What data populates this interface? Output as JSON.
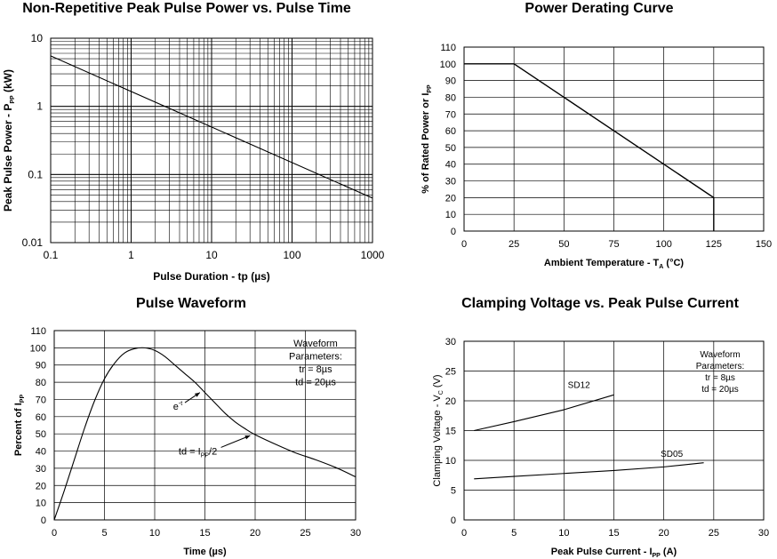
{
  "chart_data": [
    {
      "id": "power",
      "type": "line",
      "title": "Non-Repetitive Peak Pulse Power vs. Pulse Time",
      "xlabel": "Pulse Duration - tp (µs)",
      "ylabel": "Peak Pulse Power - P",
      "ylabel_sub": "PP",
      "ylabel_tail": " (kW)",
      "xscale": "log",
      "yscale": "log",
      "xlim": [
        0.1,
        1000
      ],
      "ylim": [
        0.01,
        10
      ],
      "xticks": [
        0.1,
        1,
        10,
        100,
        1000
      ],
      "xtick_labels": [
        "0.1",
        "1",
        "10",
        "100",
        "1000"
      ],
      "yticks": [
        10,
        1,
        0.1,
        0.01
      ],
      "ytick_labels": [
        "10",
        "1",
        "0.1",
        "0.01"
      ],
      "grid": true,
      "series": [
        {
          "x": [
            0.1,
            1000
          ],
          "y": [
            5.5,
            0.045
          ]
        }
      ]
    },
    {
      "id": "derating",
      "type": "line",
      "title": "Power Derating Curve",
      "xlabel": "Ambient Temperature - T",
      "xlabel_sub": "A",
      "xlabel_tail": " (°C)",
      "ylabel": "% of Rated Power or I",
      "ylabel_sub": "PP",
      "xlim": [
        0,
        150
      ],
      "ylim": [
        0,
        110
      ],
      "xticks": [
        0,
        25,
        50,
        75,
        100,
        125,
        150
      ],
      "yticks": [
        0,
        10,
        20,
        30,
        40,
        50,
        60,
        70,
        80,
        90,
        100,
        110
      ],
      "grid": true,
      "series": [
        {
          "x": [
            0,
            25,
            125,
            125
          ],
          "y": [
            100,
            100,
            20,
            0
          ]
        }
      ]
    },
    {
      "id": "waveform",
      "type": "line",
      "title": "Pulse Waveform",
      "xlabel": "Time (µs)",
      "ylabel": "Percent of I",
      "ylabel_sub": "PP",
      "xlim": [
        0,
        30
      ],
      "ylim": [
        0,
        110
      ],
      "xticks": [
        0,
        5,
        10,
        15,
        20,
        25,
        30
      ],
      "yticks": [
        0,
        10,
        20,
        30,
        40,
        50,
        60,
        70,
        80,
        90,
        100,
        110
      ],
      "grid": true,
      "legend_box": [
        "Waveform",
        "Parameters:",
        "tr = 8µs",
        "td = 20µs"
      ],
      "annotations": [
        {
          "text": "e",
          "sup": "-t",
          "x": 12.3,
          "y": 64,
          "ax": 14.5,
          "ay": 74
        },
        {
          "text": "td = I",
          "sub": "PP",
          "tail": "/2",
          "x": 14.3,
          "y": 38,
          "ax": 19.5,
          "ay": 49
        }
      ],
      "series": [
        {
          "x": [
            0,
            1,
            2,
            3,
            4,
            5,
            6,
            7,
            8,
            9,
            10,
            11,
            12,
            13,
            14,
            15,
            16,
            17,
            18,
            19,
            20,
            22,
            24,
            26,
            28,
            30
          ],
          "y": [
            0,
            17,
            35,
            53,
            69,
            82,
            91,
            97,
            99.5,
            100,
            98.5,
            95,
            90,
            85,
            80,
            74,
            68,
            62,
            57,
            53,
            49.5,
            44,
            39,
            35,
            30.5,
            25
          ]
        }
      ]
    },
    {
      "id": "clamp",
      "type": "line",
      "title": "Clamping Voltage vs. Peak Pulse Current",
      "xlabel": "Peak Pulse Current - I",
      "xlabel_sub": "PP",
      "xlabel_tail": " (A)",
      "ylabel": "Clamping Voltage - V",
      "ylabel_sub": "C",
      "ylabel_tail": " (V)",
      "xlim": [
        0,
        30
      ],
      "ylim": [
        0,
        30
      ],
      "xticks": [
        0,
        5,
        10,
        15,
        20,
        25,
        30
      ],
      "yticks": [
        0,
        5,
        10,
        15,
        20,
        25,
        30
      ],
      "grid": true,
      "legend_box": [
        "Waveform",
        "Parameters:",
        "tr = 8µs",
        "td = 20µs"
      ],
      "series": [
        {
          "name": "SD12",
          "label_at": [
            11.5,
            22.2
          ],
          "x": [
            1,
            5,
            10,
            15
          ],
          "y": [
            15,
            16.5,
            18.5,
            21
          ]
        },
        {
          "name": "SD05",
          "label_at": [
            20.8,
            10.6
          ],
          "x": [
            1,
            5,
            10,
            15,
            20,
            24
          ],
          "y": [
            6.9,
            7.3,
            7.8,
            8.3,
            8.9,
            9.6
          ]
        }
      ]
    }
  ]
}
